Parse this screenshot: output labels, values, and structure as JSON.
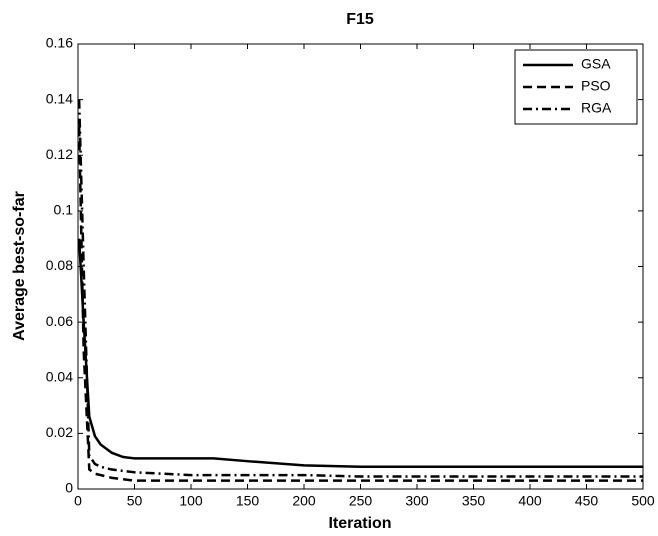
{
  "chart_data": {
    "type": "line",
    "title": "F15",
    "x_label": "Iteration",
    "y_label": "Average best-so-far",
    "x": [
      1,
      5,
      10,
      15,
      20,
      30,
      40,
      50,
      75,
      100,
      120,
      150,
      200,
      250,
      300,
      400,
      500
    ],
    "series": [
      {
        "name": "GSA",
        "color": "#000000",
        "dash": "solid",
        "values": [
          0.09,
          0.06,
          0.026,
          0.019,
          0.016,
          0.013,
          0.0115,
          0.011,
          0.011,
          0.011,
          0.011,
          0.01,
          0.0085,
          0.008,
          0.008,
          0.008,
          0.008
        ]
      },
      {
        "name": "PSO",
        "color": "#000000",
        "dash": "dashed",
        "values": [
          0.13,
          0.05,
          0.007,
          0.0055,
          0.005,
          0.004,
          0.0035,
          0.003,
          0.003,
          0.003,
          0.003,
          0.003,
          0.003,
          0.003,
          0.003,
          0.003,
          0.003
        ]
      },
      {
        "name": "RGA",
        "color": "#000000",
        "dash": "dashdot",
        "values": [
          0.14,
          0.08,
          0.012,
          0.009,
          0.008,
          0.007,
          0.0065,
          0.006,
          0.0055,
          0.005,
          0.005,
          0.005,
          0.005,
          0.0045,
          0.0045,
          0.0045,
          0.0045
        ]
      }
    ],
    "xlim": [
      0,
      500
    ],
    "xticks": [
      0,
      50,
      100,
      150,
      200,
      250,
      300,
      350,
      400,
      450,
      500
    ],
    "ylim": [
      0,
      0.16
    ],
    "yticks": [
      0,
      0.02,
      0.04,
      0.06,
      0.08,
      0.1,
      0.12,
      0.14,
      0.16
    ],
    "legend": "top-right"
  }
}
